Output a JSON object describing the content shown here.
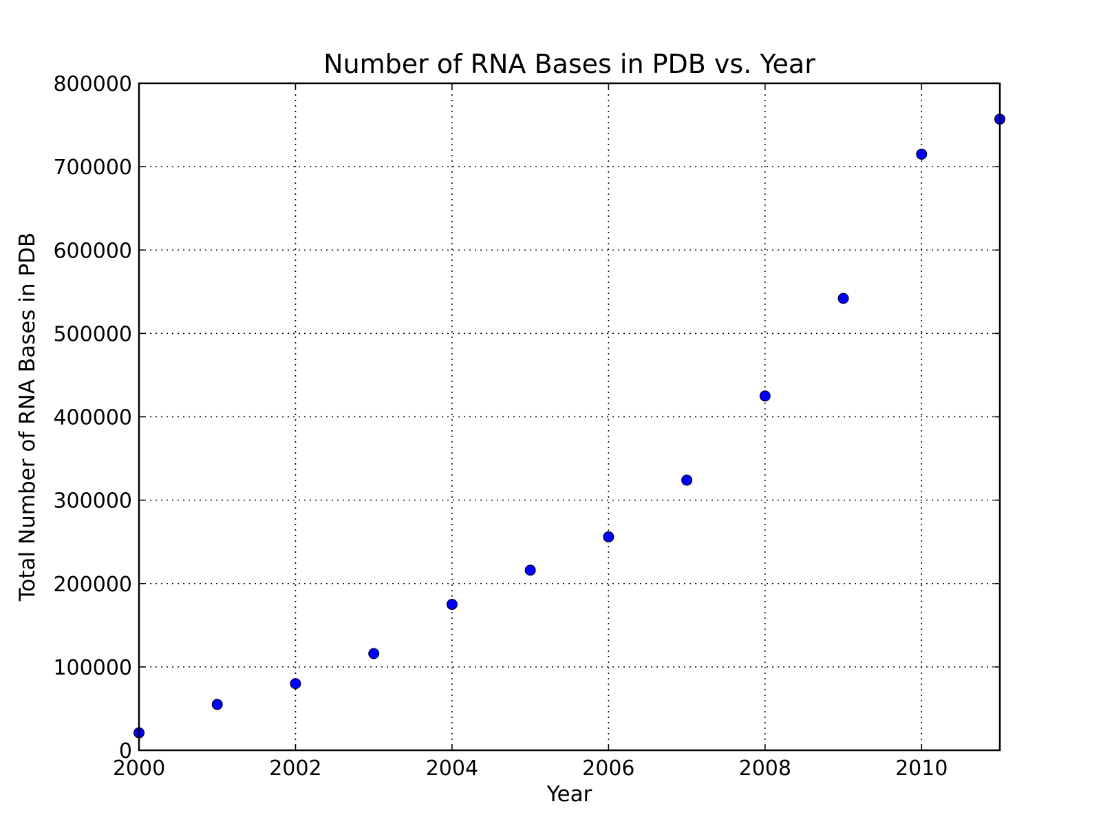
{
  "chart_data": {
    "type": "scatter",
    "title": "Number of RNA Bases in PDB vs. Year",
    "xlabel": "Year",
    "ylabel": "Total Number of RNA Bases in PDB",
    "xlim": [
      2000,
      2011
    ],
    "ylim": [
      0,
      800000
    ],
    "xticks": [
      2000,
      2002,
      2004,
      2006,
      2008,
      2010
    ],
    "yticks": [
      0,
      100000,
      200000,
      300000,
      400000,
      500000,
      600000,
      700000,
      800000
    ],
    "grid": true,
    "marker_color": "#0000ff",
    "points": [
      {
        "x": 2000,
        "y": 21000
      },
      {
        "x": 2001,
        "y": 55000
      },
      {
        "x": 2002,
        "y": 80000
      },
      {
        "x": 2003,
        "y": 116000
      },
      {
        "x": 2004,
        "y": 175000
      },
      {
        "x": 2005,
        "y": 216000
      },
      {
        "x": 2006,
        "y": 256000
      },
      {
        "x": 2007,
        "y": 324000
      },
      {
        "x": 2008,
        "y": 425000
      },
      {
        "x": 2009,
        "y": 542000
      },
      {
        "x": 2010,
        "y": 715000
      },
      {
        "x": 2011,
        "y": 757000
      }
    ]
  }
}
